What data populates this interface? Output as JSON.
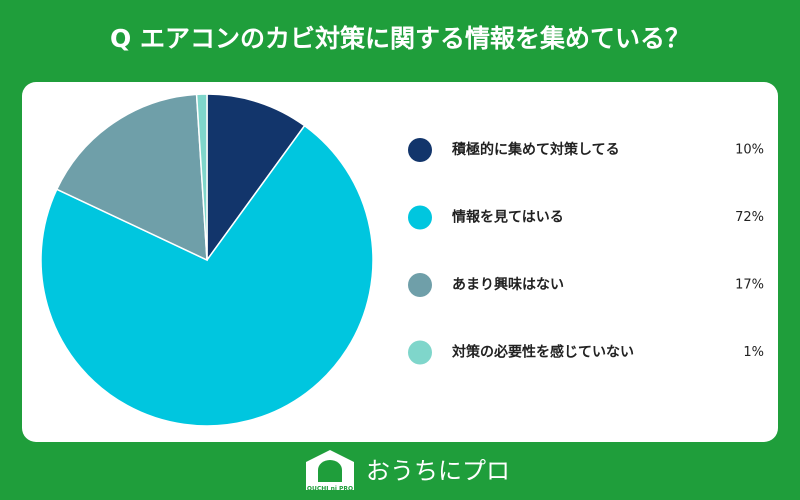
{
  "chart_data": {
    "type": "pie",
    "title": "Q エアコンのカビ対策に関する情報を集めている？",
    "categories": [
      "積極的に集めて対策してる",
      "情報を見てはいる",
      "あまり興味はない",
      "対策の必要性を感じていない"
    ],
    "values": [
      10,
      72,
      17,
      1
    ],
    "value_labels": [
      "10%",
      "72%",
      "17%",
      "1%"
    ],
    "colors": [
      "#12356b",
      "#00c6df",
      "#6f9fa9",
      "#7fd6cb"
    ]
  },
  "footer": {
    "brand": "おうちにプロ",
    "logo_text": "OUCHI ni PRO"
  }
}
